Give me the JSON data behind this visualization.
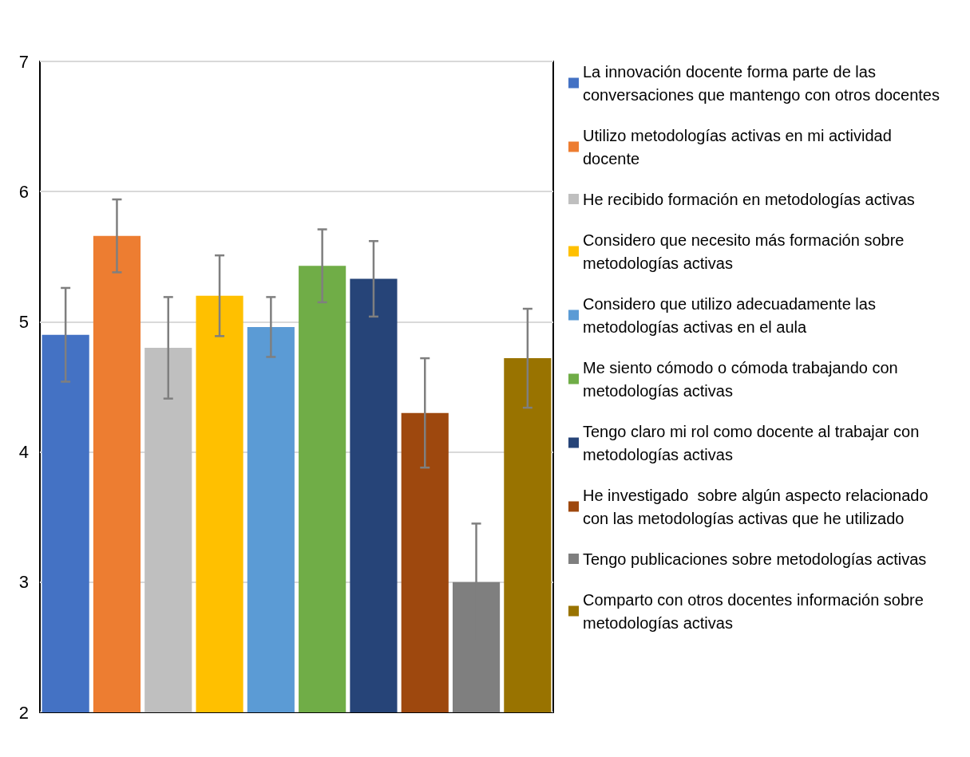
{
  "chart_data": {
    "type": "bar",
    "stacked": true,
    "categories": [
      null,
      null,
      null,
      null,
      null,
      null,
      null,
      null,
      null,
      null
    ],
    "series": [
      {
        "name": "La innovación docente forma parte de las conversaciones que mantengo con otros docentes",
        "color": "#4472c4",
        "values": [
          4.9,
          null,
          null,
          null,
          null,
          null,
          null,
          null,
          null,
          null
        ],
        "errors": [
          0.36,
          null,
          null,
          null,
          null,
          null,
          null,
          null,
          null,
          null
        ]
      },
      {
        "name": "Utilizo metodologías activas en mi actividad docente",
        "color": "#ed7d31",
        "values": [
          null,
          5.66,
          null,
          null,
          null,
          null,
          null,
          null,
          null,
          null
        ],
        "errors": [
          null,
          0.28,
          null,
          null,
          null,
          null,
          null,
          null,
          null,
          null
        ]
      },
      {
        "name": "He recibido formación en metodologías activas",
        "color": "#bfbfbf",
        "values": [
          null,
          null,
          4.8,
          null,
          null,
          null,
          null,
          null,
          null,
          null
        ],
        "errors": [
          null,
          null,
          0.39,
          null,
          null,
          null,
          null,
          null,
          null,
          null
        ]
      },
      {
        "name": "Considero que necesito más formación sobre metodologías activas",
        "color": "#ffc000",
        "values": [
          null,
          null,
          null,
          5.2,
          null,
          null,
          null,
          null,
          null,
          null
        ],
        "errors": [
          null,
          null,
          null,
          0.31,
          null,
          null,
          null,
          null,
          null,
          null
        ]
      },
      {
        "name": "Considero que utilizo adecuadamente las metodologías activas en el aula",
        "color": "#5b9bd5",
        "values": [
          null,
          null,
          null,
          null,
          4.96,
          null,
          null,
          null,
          null,
          null
        ],
        "errors": [
          null,
          null,
          null,
          null,
          0.23,
          null,
          null,
          null,
          null,
          null
        ]
      },
      {
        "name": "Me siento cómodo o cómoda trabajando con metodologías activas",
        "color": "#70ad47",
        "values": [
          null,
          null,
          null,
          null,
          null,
          5.43,
          null,
          null,
          null,
          null
        ],
        "errors": [
          null,
          null,
          null,
          null,
          null,
          0.28,
          null,
          null,
          null,
          null
        ]
      },
      {
        "name": "Tengo claro mi rol como docente al trabajar con metodologías activas",
        "color": "#264478",
        "values": [
          null,
          null,
          null,
          null,
          null,
          null,
          5.33,
          null,
          null,
          null
        ],
        "errors": [
          null,
          null,
          null,
          null,
          null,
          null,
          0.29,
          null,
          null,
          null
        ]
      },
      {
        "name": "He investigado  sobre algún aspecto relacionado con las metodologías activas que he utilizado",
        "color": "#9e480e",
        "values": [
          null,
          null,
          null,
          null,
          null,
          null,
          null,
          4.3,
          null,
          null
        ],
        "errors": [
          null,
          null,
          null,
          null,
          null,
          null,
          null,
          0.42,
          null,
          null
        ]
      },
      {
        "name": "Tengo publicaciones sobre metodologías activas",
        "color": "#7f7f7f",
        "values": [
          null,
          null,
          null,
          null,
          null,
          null,
          null,
          null,
          3.0,
          null
        ],
        "errors": [
          null,
          null,
          null,
          null,
          null,
          null,
          null,
          null,
          0.45,
          null
        ]
      },
      {
        "name": "Comparto con otros docentes información sobre metodologías activas",
        "color": "#997300",
        "values": [
          null,
          null,
          null,
          null,
          null,
          null,
          null,
          null,
          null,
          4.72
        ],
        "errors": [
          null,
          null,
          null,
          null,
          null,
          null,
          null,
          null,
          null,
          0.38
        ]
      }
    ],
    "ylim": [
      2,
      7
    ],
    "yticks": [
      2,
      3,
      4,
      5,
      6,
      7
    ],
    "grid": "y",
    "legend": "right"
  }
}
